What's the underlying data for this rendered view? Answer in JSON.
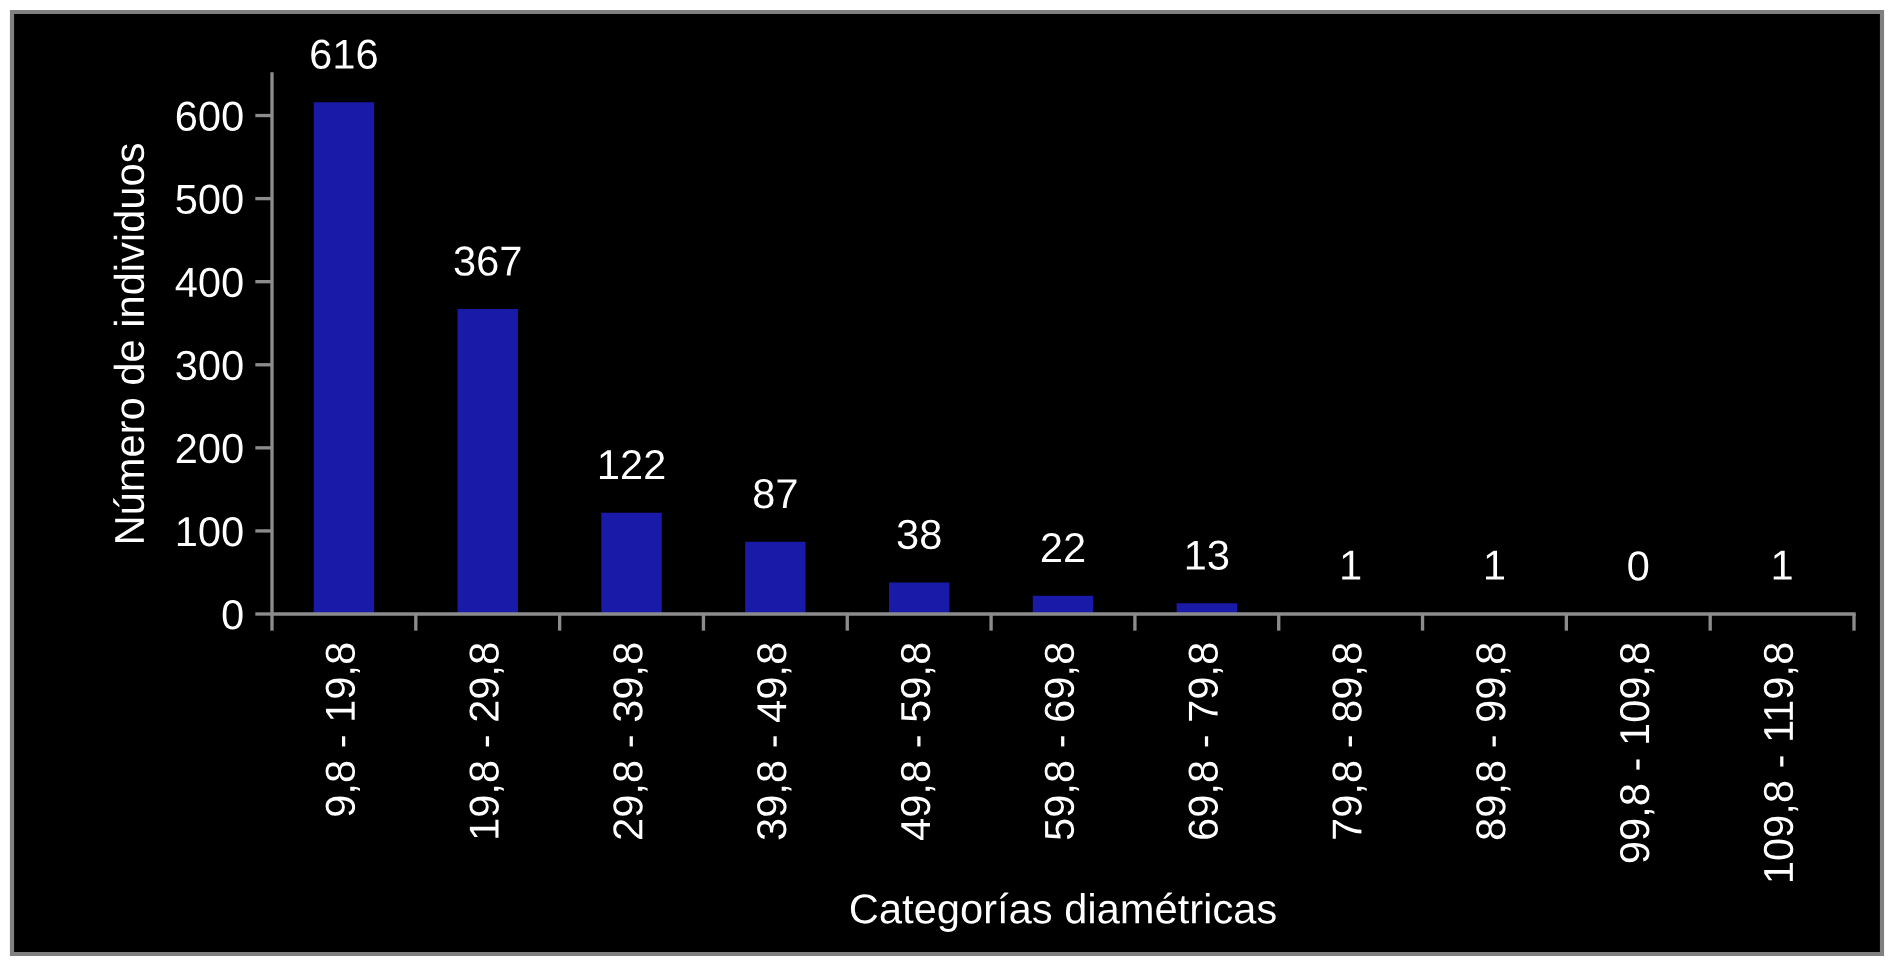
{
  "chart_data": {
    "type": "bar",
    "xlabel": "Categorías diamétricas",
    "ylabel": "Número de individuos",
    "categories": [
      "9,8 - 19,8",
      "19,8 - 29,8",
      "29,8 - 39,8",
      "39,8 - 49,8",
      "49,8 - 59,8",
      "59,8 - 69,8",
      "69,8 - 79,8",
      "79,8 - 89,8",
      "89,8 - 99,8",
      "99,8 - 109,8",
      "109,8 - 119,8"
    ],
    "values": [
      616,
      367,
      122,
      87,
      38,
      22,
      13,
      1,
      1,
      0,
      1
    ],
    "color": "#1a1aa8",
    "ylim": [
      0,
      650
    ],
    "yticks": [
      0,
      100,
      200,
      300,
      400,
      500,
      600
    ],
    "data_labels": true,
    "grid": false,
    "legend": false
  }
}
